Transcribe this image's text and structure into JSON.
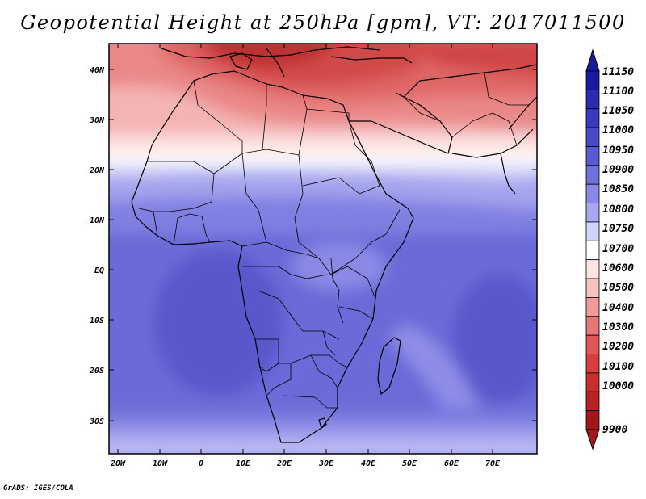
{
  "title": "Geopotential Height at 250hPa [gpm], VT: 2017011500",
  "footer": "GrADS: IGES/COLA",
  "map": {
    "lat_labels": [
      "40N",
      "30N",
      "20N",
      "10N",
      "EQ",
      "10S",
      "20S",
      "30S"
    ],
    "lon_labels": [
      "20W",
      "10W",
      "0",
      "10E",
      "20E",
      "30E",
      "40E",
      "50E",
      "60E",
      "70E"
    ],
    "extent": {
      "lon": [
        -23,
        80
      ],
      "lat": [
        -37,
        45
      ]
    }
  },
  "colorbar": {
    "labels": [
      "11150",
      "11100",
      "11050",
      "11000",
      "10950",
      "10900",
      "10850",
      "10800",
      "10750",
      "10700",
      "10600",
      "10500",
      "10400",
      "10300",
      "10200",
      "10100",
      "10000",
      "9900"
    ],
    "colors": [
      "#1a1aa0",
      "#2b2bb0",
      "#3838c0",
      "#4848c8",
      "#5a5ad2",
      "#7070dc",
      "#8888e6",
      "#a8a8f0",
      "#d2d2fa",
      "#ffffff",
      "#fde3e3",
      "#f9c2c2",
      "#f19a9a",
      "#e87676",
      "#e05656",
      "#d63d3d",
      "#c82e2e",
      "#b82222",
      "#a01818"
    ]
  }
}
